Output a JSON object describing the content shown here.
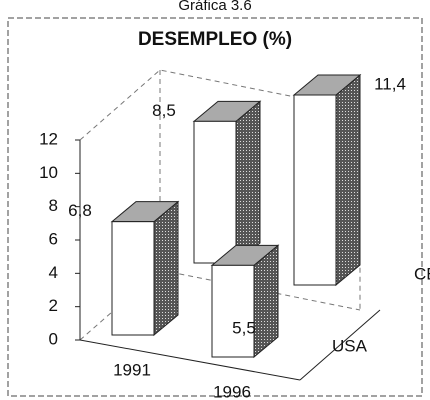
{
  "chart_data": {
    "type": "bar3d",
    "supertitle": "Gráfica 3.6",
    "title": "DESEMPLEO (%)",
    "categories": [
      "1991",
      "1996"
    ],
    "series": [
      {
        "name": "USA",
        "color": "#ffffff",
        "values": [
          6.8,
          5.5
        ],
        "value_labels": [
          "6,8",
          "5,5"
        ]
      },
      {
        "name": "CEE",
        "color": "#ffffff",
        "values": [
          8.5,
          11.4
        ],
        "value_labels": [
          "8,5",
          "11,4"
        ]
      }
    ],
    "ylim": [
      0,
      12
    ],
    "yticks": [
      0,
      2,
      4,
      6,
      8,
      10,
      12
    ]
  }
}
